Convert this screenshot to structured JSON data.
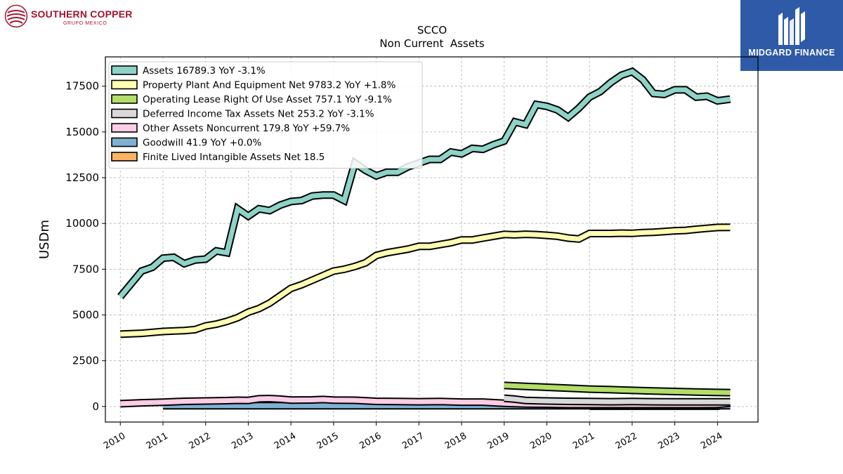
{
  "header": {
    "company_logo_text": "SOUTHERN COPPER",
    "company_logo_sub": "GRUPO MEXICO",
    "partner_logo_text": "MIDGARD FINANCE"
  },
  "colors": {
    "Assets": "#8dd3c7",
    "PPE": "#ffffb3",
    "Lease": "#b3de69",
    "Deferred": "#d9d9d9",
    "Other": "#fccde5",
    "Goodwill": "#80b1d3",
    "Intangible": "#fdb462",
    "partner_bg": "#2e5aa8",
    "brand": "#a3142f"
  },
  "chart_data": {
    "type": "line",
    "title": "SCCO",
    "subtitle": "Non Current  Assets",
    "ylabel": "USDm",
    "xlabel": "",
    "xlim": [
      2009.65,
      2024.95
    ],
    "ylim": [
      -850,
      19100
    ],
    "yticks": [
      0,
      2500,
      5000,
      7500,
      10000,
      12500,
      15000,
      17500
    ],
    "ytick_labels": [
      "0",
      "2500",
      "5000",
      "7500",
      "10000",
      "12500",
      "15000",
      "17500"
    ],
    "xticks": [
      2010,
      2011,
      2012,
      2013,
      2014,
      2015,
      2016,
      2017,
      2018,
      2019,
      2020,
      2021,
      2022,
      2023,
      2024
    ],
    "xtick_labels": [
      "2010",
      "2011",
      "2012",
      "2013",
      "2014",
      "2015",
      "2016",
      "2017",
      "2018",
      "2019",
      "2020",
      "2021",
      "2022",
      "2023",
      "2024"
    ],
    "grid": true,
    "legend_position": "upper-left",
    "series": [
      {
        "name": "Assets",
        "legend": "Assets  16789.3 YoY -3.1%",
        "color": "#8dd3c7",
        "points": [
          [
            2010.0,
            6000
          ],
          [
            2010.5,
            7400
          ],
          [
            2010.75,
            7600
          ],
          [
            2011.0,
            8100
          ],
          [
            2011.25,
            8150
          ],
          [
            2011.5,
            7800
          ],
          [
            2011.75,
            8000
          ],
          [
            2012.0,
            8050
          ],
          [
            2012.25,
            8500
          ],
          [
            2012.5,
            8400
          ],
          [
            2012.75,
            10800
          ],
          [
            2013.0,
            10400
          ],
          [
            2013.25,
            10800
          ],
          [
            2013.5,
            10700
          ],
          [
            2013.75,
            11000
          ],
          [
            2014.0,
            11200
          ],
          [
            2014.25,
            11250
          ],
          [
            2014.5,
            11500
          ],
          [
            2014.75,
            11550
          ],
          [
            2015.0,
            11550
          ],
          [
            2015.25,
            11250
          ],
          [
            2015.5,
            13300
          ],
          [
            2015.75,
            12900
          ],
          [
            2016.0,
            12600
          ],
          [
            2016.25,
            12800
          ],
          [
            2016.5,
            12800
          ],
          [
            2016.75,
            13100
          ],
          [
            2017.0,
            13300
          ],
          [
            2017.25,
            13500
          ],
          [
            2017.5,
            13500
          ],
          [
            2017.75,
            13900
          ],
          [
            2018.0,
            13800
          ],
          [
            2018.25,
            14100
          ],
          [
            2018.5,
            14050
          ],
          [
            2018.75,
            14300
          ],
          [
            2019.0,
            14500
          ],
          [
            2019.25,
            15550
          ],
          [
            2019.5,
            15400
          ],
          [
            2019.75,
            16500
          ],
          [
            2020.0,
            16400
          ],
          [
            2020.25,
            16200
          ],
          [
            2020.5,
            15800
          ],
          [
            2020.75,
            16300
          ],
          [
            2021.0,
            16900
          ],
          [
            2021.25,
            17200
          ],
          [
            2021.5,
            17700
          ],
          [
            2021.75,
            18100
          ],
          [
            2022.0,
            18300
          ],
          [
            2022.25,
            17850
          ],
          [
            2022.5,
            17100
          ],
          [
            2022.75,
            17050
          ],
          [
            2023.0,
            17300
          ],
          [
            2023.25,
            17300
          ],
          [
            2023.5,
            16900
          ],
          [
            2023.75,
            16950
          ],
          [
            2024.0,
            16700
          ],
          [
            2024.3,
            16790
          ]
        ]
      },
      {
        "name": "Property Plant And Equipment Net",
        "legend": "Property Plant And Equipment Net  9783.2 YoY +1.8%",
        "color": "#ffffb3",
        "points": [
          [
            2010.0,
            3950
          ],
          [
            2010.5,
            4000
          ],
          [
            2010.75,
            4050
          ],
          [
            2011.0,
            4100
          ],
          [
            2011.5,
            4150
          ],
          [
            2011.75,
            4200
          ],
          [
            2012.0,
            4400
          ],
          [
            2012.25,
            4500
          ],
          [
            2012.5,
            4650
          ],
          [
            2012.75,
            4850
          ],
          [
            2013.0,
            5150
          ],
          [
            2013.25,
            5350
          ],
          [
            2013.5,
            5650
          ],
          [
            2013.75,
            6050
          ],
          [
            2014.0,
            6450
          ],
          [
            2014.25,
            6650
          ],
          [
            2014.5,
            6900
          ],
          [
            2014.75,
            7150
          ],
          [
            2015.0,
            7400
          ],
          [
            2015.25,
            7500
          ],
          [
            2015.5,
            7650
          ],
          [
            2015.75,
            7850
          ],
          [
            2016.0,
            8250
          ],
          [
            2016.25,
            8400
          ],
          [
            2016.5,
            8500
          ],
          [
            2016.75,
            8600
          ],
          [
            2017.0,
            8750
          ],
          [
            2017.25,
            8750
          ],
          [
            2017.5,
            8850
          ],
          [
            2017.75,
            8950
          ],
          [
            2018.0,
            9100
          ],
          [
            2018.25,
            9100
          ],
          [
            2018.5,
            9200
          ],
          [
            2018.75,
            9300
          ],
          [
            2019.0,
            9400
          ],
          [
            2019.25,
            9380
          ],
          [
            2019.5,
            9410
          ],
          [
            2019.75,
            9390
          ],
          [
            2020.0,
            9350
          ],
          [
            2020.25,
            9300
          ],
          [
            2020.5,
            9200
          ],
          [
            2020.75,
            9150
          ],
          [
            2021.0,
            9450
          ],
          [
            2021.25,
            9450
          ],
          [
            2021.5,
            9450
          ],
          [
            2021.75,
            9470
          ],
          [
            2022.0,
            9460
          ],
          [
            2022.25,
            9500
          ],
          [
            2022.5,
            9520
          ],
          [
            2022.75,
            9560
          ],
          [
            2023.0,
            9600
          ],
          [
            2023.25,
            9620
          ],
          [
            2023.5,
            9680
          ],
          [
            2023.75,
            9730
          ],
          [
            2024.0,
            9780
          ],
          [
            2024.3,
            9783
          ]
        ]
      },
      {
        "name": "Operating Lease Right Of Use Asset",
        "legend": "Operating Lease Right Of Use Asset  757.1 YoY -9.1%",
        "color": "#b3de69",
        "points": [
          [
            2019.0,
            1150
          ],
          [
            2019.5,
            1100
          ],
          [
            2020.0,
            1050
          ],
          [
            2020.5,
            1000
          ],
          [
            2021.0,
            950
          ],
          [
            2021.5,
            920
          ],
          [
            2022.0,
            880
          ],
          [
            2022.5,
            850
          ],
          [
            2023.0,
            820
          ],
          [
            2023.5,
            790
          ],
          [
            2024.3,
            757
          ]
        ]
      },
      {
        "name": "Deferred Income Tax Assets Net",
        "legend": "Deferred Income Tax Assets Net  253.2 YoY -3.1%",
        "color": "#d9d9d9",
        "points": [
          [
            2019.0,
            450
          ],
          [
            2019.25,
            400
          ],
          [
            2019.5,
            330
          ],
          [
            2020.0,
            300
          ],
          [
            2020.5,
            280
          ],
          [
            2021.0,
            270
          ],
          [
            2021.5,
            260
          ],
          [
            2022.0,
            270
          ],
          [
            2022.5,
            260
          ],
          [
            2023.0,
            255
          ],
          [
            2023.5,
            250
          ],
          [
            2024.3,
            253
          ]
        ]
      },
      {
        "name": "Other Assets Noncurrent",
        "legend": "Other Assets Noncurrent  179.8 YoY +59.7%",
        "color": "#fccde5",
        "points": [
          [
            2010.0,
            150
          ],
          [
            2010.5,
            200
          ],
          [
            2011.0,
            230
          ],
          [
            2011.5,
            280
          ],
          [
            2012.0,
            300
          ],
          [
            2012.5,
            320
          ],
          [
            2012.75,
            340
          ],
          [
            2013.0,
            330
          ],
          [
            2013.25,
            420
          ],
          [
            2013.5,
            430
          ],
          [
            2013.75,
            400
          ],
          [
            2014.0,
            350
          ],
          [
            2014.5,
            360
          ],
          [
            2014.75,
            380
          ],
          [
            2015.0,
            350
          ],
          [
            2015.5,
            340
          ],
          [
            2015.75,
            310
          ],
          [
            2016.0,
            280
          ],
          [
            2016.5,
            270
          ],
          [
            2017.0,
            260
          ],
          [
            2017.5,
            270
          ],
          [
            2018.0,
            240
          ],
          [
            2018.5,
            240
          ],
          [
            2019.0,
            180
          ],
          [
            2019.5,
            140
          ],
          [
            2020.0,
            130
          ],
          [
            2020.5,
            110
          ],
          [
            2021.0,
            110
          ],
          [
            2021.5,
            110
          ],
          [
            2022.0,
            110
          ],
          [
            2022.5,
            110
          ],
          [
            2023.0,
            110
          ],
          [
            2023.5,
            110
          ],
          [
            2024.0,
            115
          ],
          [
            2024.3,
            180
          ]
        ]
      },
      {
        "name": "Goodwill",
        "legend": "Goodwill  41.9 YoY +0.0%",
        "color": "#80b1d3",
        "points": [
          [
            2011.0,
            42
          ],
          [
            2021.0,
            42
          ],
          [
            2022.0,
            42
          ],
          [
            2023.0,
            42
          ],
          [
            2024.3,
            42
          ]
        ]
      },
      {
        "name": "Finite Lived Intangible Assets Net",
        "legend": "Finite Lived Intangible Assets Net  18.5",
        "color": "#fdb462",
        "points": [
          [
            2021.0,
            18.5
          ],
          [
            2022.0,
            18.5
          ],
          [
            2023.0,
            18.5
          ],
          [
            2024.05,
            18.5
          ]
        ]
      }
    ]
  }
}
